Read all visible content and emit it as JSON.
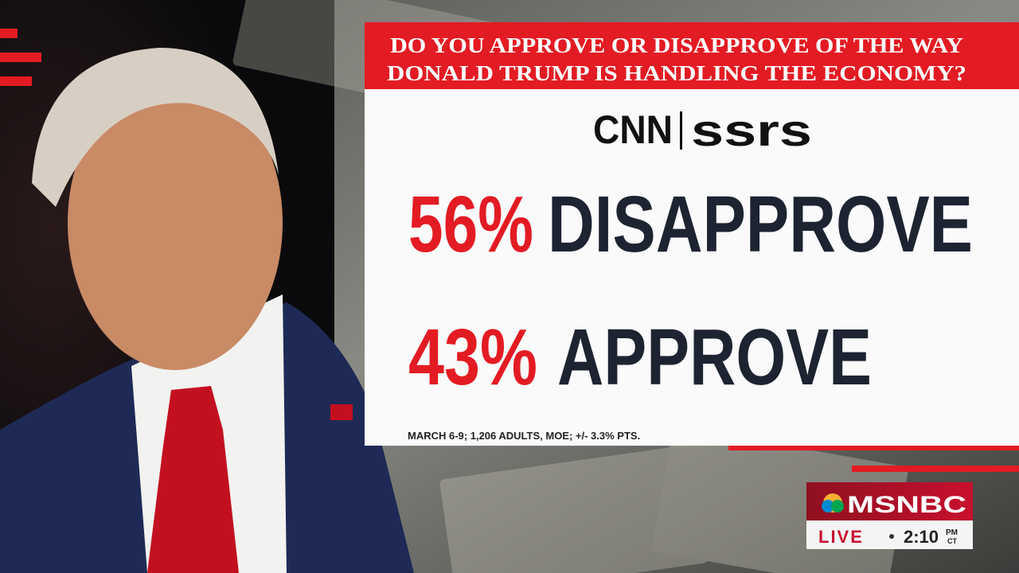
{
  "question": {
    "lines": [
      "DO YOU APPROVE OR DISAPPROVE OF THE WAY",
      "DONALD TRUMP IS HANDLING THE ECONOMY?"
    ]
  },
  "pollster": {
    "left": "CNN",
    "right": "ssrs"
  },
  "results": [
    {
      "pct": "56%",
      "label": "DISAPPROVE"
    },
    {
      "pct": "43%",
      "label": "APPROVE"
    }
  ],
  "footnote": "MARCH 6-9; 1,206 ADULTS, MOE; +/- 3.3% PTS.",
  "network": {
    "name": "MSNBC",
    "status": "LIVE",
    "time": "2:10",
    "ampm": "PM",
    "zone": "CT"
  }
}
